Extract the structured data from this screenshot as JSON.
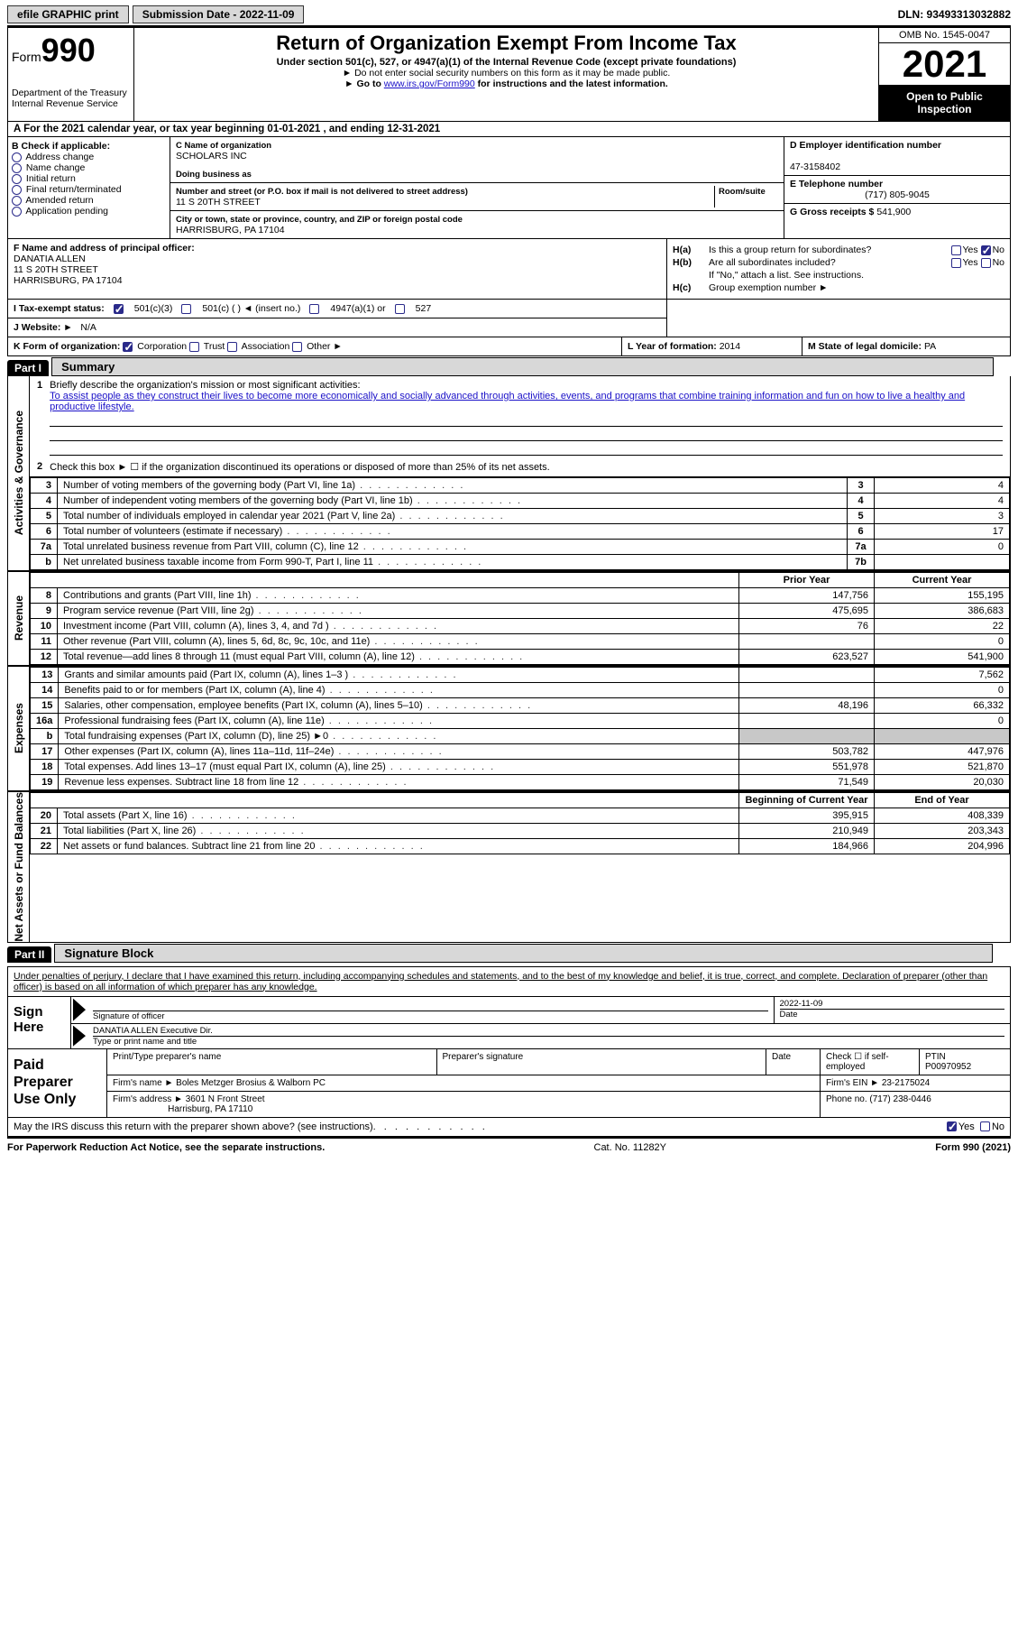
{
  "topbar": {
    "btn1": "efile GRAPHIC print",
    "btn2": "Submission Date - 2022-11-09",
    "dln": "DLN: 93493313032882"
  },
  "header": {
    "form_small": "Form",
    "form_big": "990",
    "dept": "Department of the Treasury Internal Revenue Service",
    "title": "Return of Organization Exempt From Income Tax",
    "subtitle": "Under section 501(c), 527, or 4947(a)(1) of the Internal Revenue Code (except private foundations)",
    "note1": "Do not enter social security numbers on this form as it may be made public.",
    "note2_pre": "Go to ",
    "note2_link": "www.irs.gov/Form990",
    "note2_post": " for instructions and the latest information.",
    "omb": "OMB No. 1545-0047",
    "year": "2021",
    "otp": "Open to Public Inspection"
  },
  "line_a": "A For the 2021 calendar year, or tax year beginning 01-01-2021    , and ending 12-31-2021",
  "b": {
    "head": "B Check if applicable:",
    "opts": [
      "Address change",
      "Name change",
      "Initial return",
      "Final return/terminated",
      "Amended return",
      "Application pending"
    ]
  },
  "c": {
    "name_lbl": "C Name of organization",
    "name": "SCHOLARS INC",
    "dba_lbl": "Doing business as",
    "dba": "",
    "addr_lbl": "Number and street (or P.O. box if mail is not delivered to street address)",
    "room_lbl": "Room/suite",
    "addr": "11 S 20TH STREET",
    "city_lbl": "City or town, state or province, country, and ZIP or foreign postal code",
    "city": "HARRISBURG, PA  17104"
  },
  "d": {
    "ein_lbl": "D Employer identification number",
    "ein": "47-3158402",
    "tel_lbl": "E Telephone number",
    "tel": "(717) 805-9045",
    "gross_lbl": "G Gross receipts $",
    "gross": "541,900"
  },
  "f": {
    "lbl": "F Name and address of principal officer:",
    "name": "DANATIA ALLEN",
    "addr1": "11 S 20TH STREET",
    "addr2": "HARRISBURG, PA  17104"
  },
  "h": {
    "a_lbl": "H(a)",
    "a_txt": "Is this a group return for subordinates?",
    "b_lbl": "H(b)",
    "b_txt": "Are all subordinates included?",
    "b_note": "If \"No,\" attach a list. See instructions.",
    "c_lbl": "H(c)",
    "c_txt": "Group exemption number ►",
    "yes": "Yes",
    "no": "No"
  },
  "tes": {
    "lbl": "I  Tax-exempt status:",
    "o1": "501(c)(3)",
    "o2": "501(c) (   ) ◄ (insert no.)",
    "o3": "4947(a)(1) or",
    "o4": "527"
  },
  "j": {
    "lbl": "J  Website: ►",
    "val": "N/A"
  },
  "k": {
    "lbl": "K Form of organization:",
    "o1": "Corporation",
    "o2": "Trust",
    "o3": "Association",
    "o4": "Other ►"
  },
  "l": {
    "lbl": "L Year of formation:",
    "val": "2014"
  },
  "m": {
    "lbl": "M State of legal domicile:",
    "val": "PA"
  },
  "part1": {
    "hdr": "Part I",
    "title": "Summary",
    "vtab_ag": "Activities & Governance",
    "vtab_rev": "Revenue",
    "vtab_exp": "Expenses",
    "vtab_na": "Net Assets or Fund Balances",
    "q1_lbl": "1",
    "q1": "Briefly describe the organization's mission or most significant activities:",
    "q1_mission": "To assist people as they construct their lives to become more economically and socially advanced through activities, events, and programs that combine training information and fun on how to live a healthy and productive lifestyle.",
    "q2_lbl": "2",
    "q2": "Check this box ► ☐  if the organization discontinued its operations or disposed of more than 25% of its net assets.",
    "rows_ag": [
      {
        "n": "3",
        "d": "Number of voting members of the governing body (Part VI, line 1a)",
        "box": "3",
        "v": "4"
      },
      {
        "n": "4",
        "d": "Number of independent voting members of the governing body (Part VI, line 1b)",
        "box": "4",
        "v": "4"
      },
      {
        "n": "5",
        "d": "Total number of individuals employed in calendar year 2021 (Part V, line 2a)",
        "box": "5",
        "v": "3"
      },
      {
        "n": "6",
        "d": "Total number of volunteers (estimate if necessary)",
        "box": "6",
        "v": "17"
      },
      {
        "n": "7a",
        "d": "Total unrelated business revenue from Part VIII, column (C), line 12",
        "box": "7a",
        "v": "0"
      },
      {
        "n": "b",
        "d": "Net unrelated business taxable income from Form 990-T, Part I, line 11",
        "box": "7b",
        "v": ""
      }
    ],
    "col_prior": "Prior Year",
    "col_curr": "Current Year",
    "rows_rev": [
      {
        "n": "8",
        "d": "Contributions and grants (Part VIII, line 1h)",
        "p": "147,756",
        "c": "155,195"
      },
      {
        "n": "9",
        "d": "Program service revenue (Part VIII, line 2g)",
        "p": "475,695",
        "c": "386,683"
      },
      {
        "n": "10",
        "d": "Investment income (Part VIII, column (A), lines 3, 4, and 7d )",
        "p": "76",
        "c": "22"
      },
      {
        "n": "11",
        "d": "Other revenue (Part VIII, column (A), lines 5, 6d, 8c, 9c, 10c, and 11e)",
        "p": "",
        "c": "0"
      },
      {
        "n": "12",
        "d": "Total revenue—add lines 8 through 11 (must equal Part VIII, column (A), line 12)",
        "p": "623,527",
        "c": "541,900"
      }
    ],
    "rows_exp": [
      {
        "n": "13",
        "d": "Grants and similar amounts paid (Part IX, column (A), lines 1–3 )",
        "p": "",
        "c": "7,562"
      },
      {
        "n": "14",
        "d": "Benefits paid to or for members (Part IX, column (A), line 4)",
        "p": "",
        "c": "0"
      },
      {
        "n": "15",
        "d": "Salaries, other compensation, employee benefits (Part IX, column (A), lines 5–10)",
        "p": "48,196",
        "c": "66,332"
      },
      {
        "n": "16a",
        "d": "Professional fundraising fees (Part IX, column (A), line 11e)",
        "p": "",
        "c": "0"
      },
      {
        "n": "b",
        "d": "Total fundraising expenses (Part IX, column (D), line 25) ►0",
        "p": "SHADE",
        "c": "SHADE"
      },
      {
        "n": "17",
        "d": "Other expenses (Part IX, column (A), lines 11a–11d, 11f–24e)",
        "p": "503,782",
        "c": "447,976"
      },
      {
        "n": "18",
        "d": "Total expenses. Add lines 13–17 (must equal Part IX, column (A), line 25)",
        "p": "551,978",
        "c": "521,870"
      },
      {
        "n": "19",
        "d": "Revenue less expenses. Subtract line 18 from line 12",
        "p": "71,549",
        "c": "20,030"
      }
    ],
    "col_boy": "Beginning of Current Year",
    "col_eoy": "End of Year",
    "rows_na": [
      {
        "n": "20",
        "d": "Total assets (Part X, line 16)",
        "p": "395,915",
        "c": "408,339"
      },
      {
        "n": "21",
        "d": "Total liabilities (Part X, line 26)",
        "p": "210,949",
        "c": "203,343"
      },
      {
        "n": "22",
        "d": "Net assets or fund balances. Subtract line 21 from line 20",
        "p": "184,966",
        "c": "204,996"
      }
    ]
  },
  "part2": {
    "hdr": "Part II",
    "title": "Signature Block",
    "decl": "Under penalties of perjury, I declare that I have examined this return, including accompanying schedules and statements, and to the best of my knowledge and belief, it is true, correct, and complete. Declaration of preparer (other than officer) is based on all information of which preparer has any knowledge.",
    "sign_lbl": "Sign Here",
    "sig_of": "Signature of officer",
    "sig_date": "2022-11-09",
    "date_lbl": "Date",
    "name_title": "DANATIA ALLEN  Executive Dir.",
    "name_lbl": "Type or print name and title",
    "prep_lbl": "Paid Preparer Use Only",
    "pname_lbl": "Print/Type preparer's name",
    "psig_lbl": "Preparer's signature",
    "pdate_lbl": "Date",
    "pcheck_lbl": "Check ☐ if self-employed",
    "ptin_lbl": "PTIN",
    "ptin": "P00970952",
    "firm_name_lbl": "Firm's name    ►",
    "firm_name": "Boles Metzger Brosius & Walborn PC",
    "firm_ein_lbl": "Firm's EIN ►",
    "firm_ein": "23-2175024",
    "firm_addr_lbl": "Firm's address ►",
    "firm_addr": "3601 N Front Street",
    "firm_city": "Harrisburg, PA  17110",
    "phone_lbl": "Phone no.",
    "phone": "(717) 238-0446"
  },
  "may": {
    "q": "May the IRS discuss this return with the preparer shown above? (see instructions)",
    "yes": "Yes",
    "no": "No"
  },
  "footer": {
    "fpc": "For Paperwork Reduction Act Notice, see the separate instructions.",
    "cat": "Cat. No. 11282Y",
    "form": "Form 990 (2021)"
  }
}
